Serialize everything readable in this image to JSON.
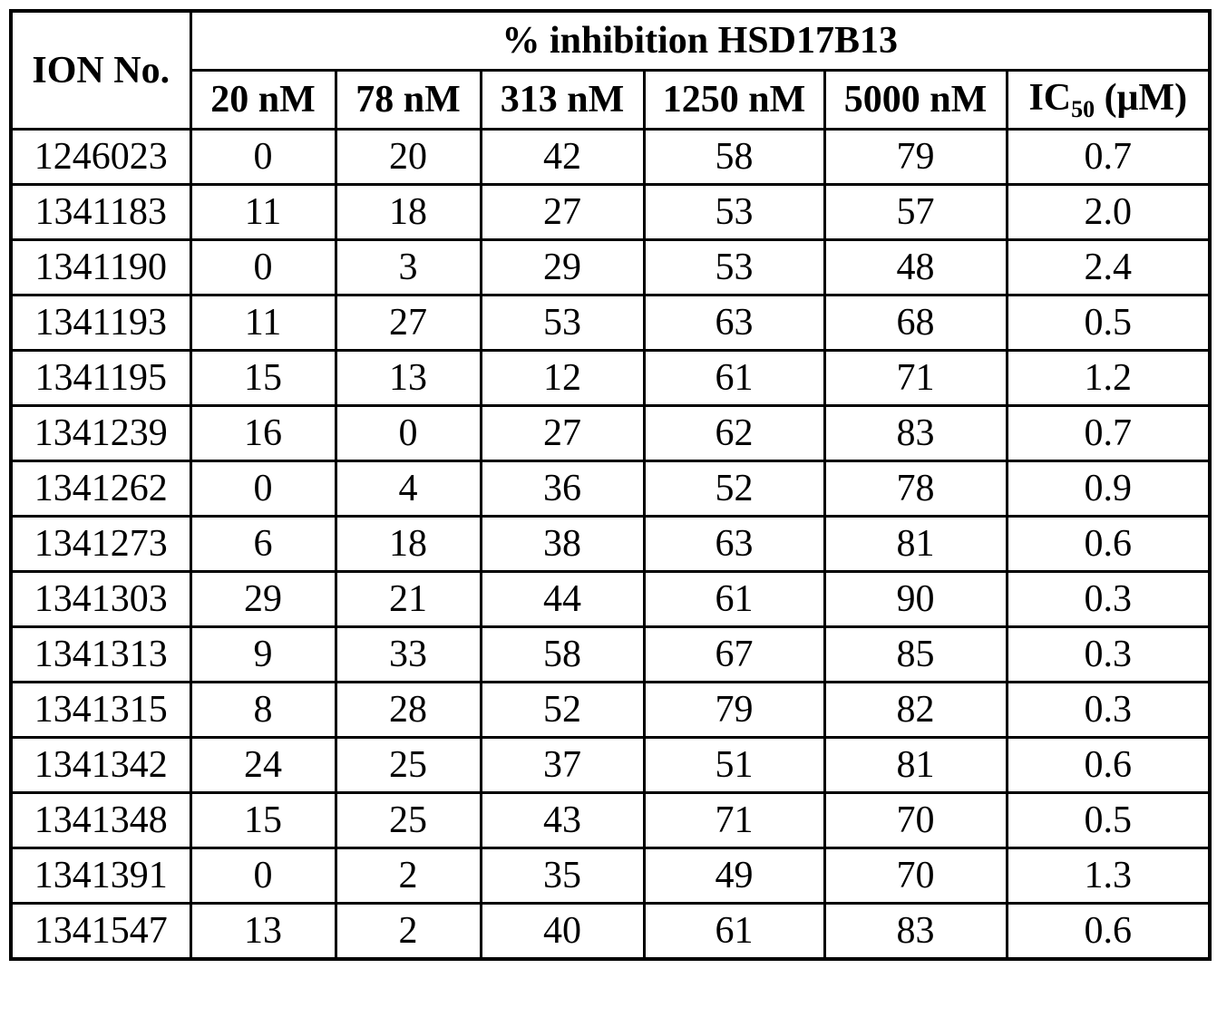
{
  "table": {
    "corner_header": "ION No.",
    "span_header": "% inhibition HSD17B13",
    "concentration_headers": [
      "20 nM",
      "78 nM",
      "313 nM",
      "1250 nM",
      "5000 nM"
    ],
    "ic50_header": {
      "prefix": "IC",
      "subscript": "50",
      "suffix": " (μM)"
    },
    "rows": [
      {
        "ion": "1246023",
        "values": [
          "0",
          "20",
          "42",
          "58",
          "79",
          "0.7"
        ]
      },
      {
        "ion": "1341183",
        "values": [
          "11",
          "18",
          "27",
          "53",
          "57",
          "2.0"
        ]
      },
      {
        "ion": "1341190",
        "values": [
          "0",
          "3",
          "29",
          "53",
          "48",
          "2.4"
        ]
      },
      {
        "ion": "1341193",
        "values": [
          "11",
          "27",
          "53",
          "63",
          "68",
          "0.5"
        ]
      },
      {
        "ion": "1341195",
        "values": [
          "15",
          "13",
          "12",
          "61",
          "71",
          "1.2"
        ]
      },
      {
        "ion": "1341239",
        "values": [
          "16",
          "0",
          "27",
          "62",
          "83",
          "0.7"
        ]
      },
      {
        "ion": "1341262",
        "values": [
          "0",
          "4",
          "36",
          "52",
          "78",
          "0.9"
        ]
      },
      {
        "ion": "1341273",
        "values": [
          "6",
          "18",
          "38",
          "63",
          "81",
          "0.6"
        ]
      },
      {
        "ion": "1341303",
        "values": [
          "29",
          "21",
          "44",
          "61",
          "90",
          "0.3"
        ]
      },
      {
        "ion": "1341313",
        "values": [
          "9",
          "33",
          "58",
          "67",
          "85",
          "0.3"
        ]
      },
      {
        "ion": "1341315",
        "values": [
          "8",
          "28",
          "52",
          "79",
          "82",
          "0.3"
        ]
      },
      {
        "ion": "1341342",
        "values": [
          "24",
          "25",
          "37",
          "51",
          "81",
          "0.6"
        ]
      },
      {
        "ion": "1341348",
        "values": [
          "15",
          "25",
          "43",
          "71",
          "70",
          "0.5"
        ]
      },
      {
        "ion": "1341391",
        "values": [
          "0",
          "2",
          "35",
          "49",
          "70",
          "1.3"
        ]
      },
      {
        "ion": "1341547",
        "values": [
          "13",
          "2",
          "40",
          "61",
          "83",
          "0.6"
        ]
      }
    ]
  },
  "colors": {
    "border": "#000000",
    "background": "#ffffff",
    "text": "#000000"
  }
}
